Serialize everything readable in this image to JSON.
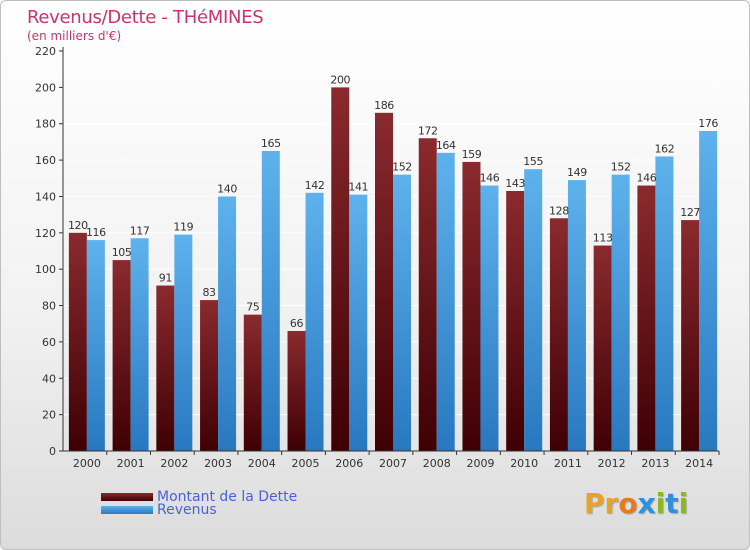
{
  "chart_data": {
    "type": "bar",
    "title": "Revenus/Dette - THéMINES",
    "subtitle": "(en milliers d'€)",
    "xlabel": "",
    "ylabel": "",
    "ylim": [
      0,
      220
    ],
    "yticks": [
      0,
      20,
      40,
      60,
      80,
      100,
      120,
      140,
      160,
      180,
      200,
      220
    ],
    "grid": true,
    "categories": [
      "2000",
      "2001",
      "2002",
      "2003",
      "2004",
      "2005",
      "2006",
      "2007",
      "2008",
      "2009",
      "2010",
      "2011",
      "2012",
      "2013",
      "2014"
    ],
    "series": [
      {
        "name": "Montant de la Dette",
        "color": "#7a1f24",
        "values": [
          120,
          105,
          91,
          83,
          75,
          66,
          200,
          186,
          172,
          159,
          143,
          128,
          113,
          146,
          127
        ]
      },
      {
        "name": "Revenus",
        "color": "#4aa0e0",
        "values": [
          116,
          117,
          119,
          140,
          165,
          142,
          141,
          152,
          164,
          146,
          155,
          149,
          152,
          162,
          176
        ]
      }
    ],
    "legend_position": "bottom-left"
  },
  "brand": {
    "logo_text": "Proxiti"
  },
  "colors": {
    "title": "#c8346b",
    "debt_top": "#8a2a2e",
    "debt_bottom": "#3e0004",
    "rev_top": "#5eb2ec",
    "rev_bottom": "#2878c0"
  }
}
